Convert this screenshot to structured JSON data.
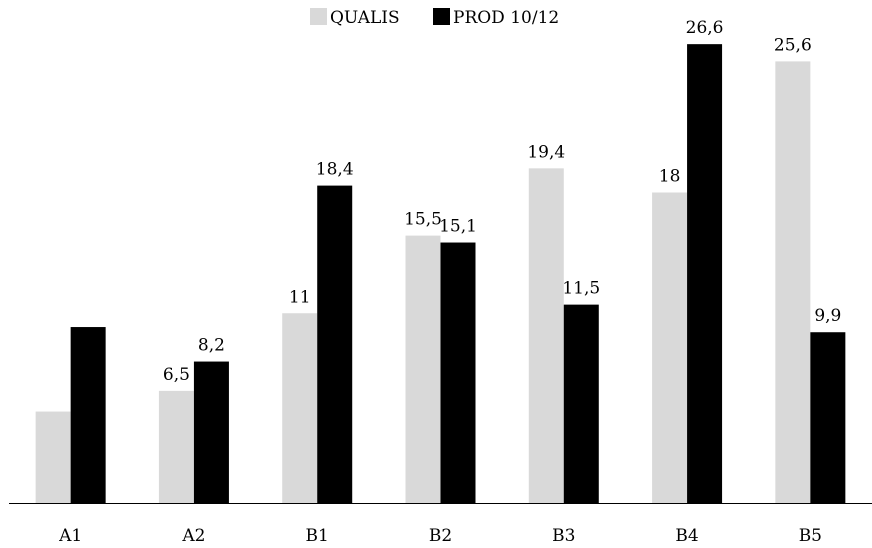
{
  "chart_data": {
    "type": "bar",
    "title": "",
    "xlabel": "",
    "ylabel": "",
    "categories": [
      "A1",
      "A2",
      "B1",
      "B2",
      "B3",
      "B4",
      "B5"
    ],
    "series": [
      {
        "name": "QUALIS",
        "color": "#d9d9d9",
        "values": [
          5.3,
          6.5,
          11,
          15.5,
          19.4,
          18,
          25.6
        ],
        "labels": [
          "",
          "6,5",
          "11",
          "15,5",
          "19,4",
          "18",
          "25,6"
        ]
      },
      {
        "name": "PROD 10/12",
        "color": "#000000",
        "values": [
          10.2,
          8.2,
          18.4,
          15.1,
          11.5,
          26.6,
          9.9
        ],
        "labels": [
          "",
          "8,2",
          "18,4",
          "15,1",
          "11,5",
          "26,6",
          "9,9"
        ]
      }
    ],
    "ylim": [
      0,
      28
    ],
    "grid": false,
    "legend": "top-center"
  }
}
